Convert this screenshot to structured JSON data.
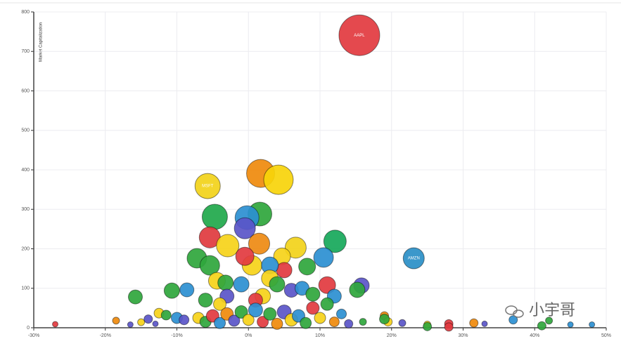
{
  "chart_data": {
    "type": "scatter",
    "y_label": "Market Capitalization",
    "xlim": [
      -30,
      50
    ],
    "ylim": [
      0,
      800
    ],
    "xticks": [
      {
        "value": -30,
        "label": "-30%"
      },
      {
        "value": -20,
        "label": "-20%"
      },
      {
        "value": -10,
        "label": "-10%"
      },
      {
        "value": 0,
        "label": "0%"
      },
      {
        "value": 10,
        "label": "10%"
      },
      {
        "value": 20,
        "label": "20%"
      },
      {
        "value": 30,
        "label": "30%"
      },
      {
        "value": 40,
        "label": "40%"
      },
      {
        "value": 50,
        "label": "50%"
      }
    ],
    "yticks": [
      0,
      100,
      200,
      300,
      400,
      500,
      600,
      700,
      800
    ],
    "grid": true,
    "watermark": "小宇哥",
    "x": [
      15.5,
      -5.7,
      23.1,
      1.7,
      4.2,
      -4.7,
      1.6,
      -0.2,
      -0.5,
      -5.4,
      12.1,
      1.5,
      -2.9,
      6.6,
      -7.2,
      10.5,
      0.5,
      -5.4,
      -0.5,
      4.7,
      8.2,
      5.0,
      3.0,
      -4.4,
      -3.2,
      11.0,
      15.8,
      15.2,
      -10.7,
      -8.6,
      -15.8,
      3,
      -1,
      2,
      4,
      6,
      7.5,
      1,
      -3,
      -6,
      9,
      -4,
      12,
      -27,
      -18.5,
      -16.5,
      -14,
      -15,
      -12.5,
      -11.5,
      -13,
      -10,
      -9,
      -7,
      -6,
      -5,
      -4,
      -3,
      -2,
      -1,
      0,
      1,
      2,
      3,
      4,
      5,
      6,
      7,
      8,
      9,
      10,
      11,
      12,
      13,
      14,
      16,
      19,
      19.5,
      19,
      21.5,
      25,
      25,
      28,
      28,
      31.5,
      33,
      37,
      41,
      42,
      45,
      48
    ],
    "values": [
      741,
      359,
      176,
      391,
      375,
      281,
      288,
      279,
      252,
      229,
      219,
      213,
      208,
      203,
      176,
      178,
      158,
      158,
      181,
      181,
      155,
      146,
      158,
      119,
      114,
      108,
      107,
      96,
      94,
      96,
      78,
      125,
      110,
      80,
      110,
      95,
      100,
      70,
      80,
      70,
      85,
      60,
      80,
      9,
      18,
      8,
      22,
      14,
      37,
      32,
      10,
      25,
      20,
      25,
      15,
      30,
      12,
      35,
      18,
      40,
      20,
      45,
      15,
      35,
      10,
      40,
      20,
      30,
      12,
      50,
      25,
      60,
      15,
      35,
      10,
      15,
      30,
      15,
      22,
      12,
      8,
      3,
      10,
      2,
      12,
      10,
      20,
      5,
      18,
      8,
      8
    ],
    "sizes": [
      29,
      18,
      15,
      20,
      21,
      18,
      17,
      17,
      15,
      15,
      16,
      15,
      16,
      15,
      14,
      14,
      14,
      14,
      13,
      12,
      12,
      11,
      12,
      12,
      11,
      12,
      11,
      11,
      11,
      10,
      10,
      12,
      11,
      11,
      11,
      10,
      10,
      10,
      10,
      10,
      10,
      9,
      10,
      4,
      5,
      4,
      6,
      5,
      7,
      7,
      4,
      8,
      7,
      8,
      8,
      9,
      8,
      9,
      8,
      9,
      8,
      10,
      8,
      9,
      8,
      10,
      9,
      9,
      8,
      9,
      8,
      9,
      7,
      7,
      6,
      5,
      6,
      6,
      7,
      5,
      5,
      6,
      6,
      6,
      6,
      4,
      6,
      6,
      5,
      4,
      4
    ],
    "colors": [
      "#e23a3f",
      "#f2d21a",
      "#2a8fc7",
      "#ef8a0c",
      "#f7d40a",
      "#1fa84b",
      "#2fa63c",
      "#2b8fd1",
      "#5a55c8",
      "#e03a3e",
      "#16a85a",
      "#ee8a12",
      "#f6d219",
      "#f2d21a",
      "#2fa63c",
      "#2b8fd1",
      "#f6d219",
      "#2fa63c",
      "#e23a3f",
      "#f6d219",
      "#2fa63c",
      "#e23a3f",
      "#2b8fd1",
      "#f6d219",
      "#2fa63c",
      "#e23a3f",
      "#5a55c8",
      "#2fa63c",
      "#2fa63c",
      "#2b8fd1",
      "#2fa63c",
      "#f6d219",
      "#2b8fd1",
      "#f6d219",
      "#2fa63c",
      "#5a55c8",
      "#2b8fd1",
      "#e23a3f",
      "#5a55c8",
      "#2fa63c",
      "#2fa63c",
      "#f6d219",
      "#2b8fd1",
      "#e23a3f",
      "#ef8a0c",
      "#5a55c8",
      "#5a55c8",
      "#f6d219",
      "#f6d219",
      "#2fa63c",
      "#5a55c8",
      "#2b8fd1",
      "#5a55c8",
      "#f6d219",
      "#2fa63c",
      "#e23a3f",
      "#2b8fd1",
      "#ef8a0c",
      "#5a55c8",
      "#2fa63c",
      "#f6d219",
      "#2b8fd1",
      "#e23a3f",
      "#2fa63c",
      "#ef8a0c",
      "#5a55c8",
      "#f6d219",
      "#2b8fd1",
      "#2fa63c",
      "#e23a3f",
      "#f6d219",
      "#2fa63c",
      "#ef8a0c",
      "#2b8fd1",
      "#5a55c8",
      "#2fa63c",
      "#ef8a0c",
      "#f6d219",
      "#2fa63c",
      "#5a55c8",
      "#f6d219",
      "#2fa63c",
      "#e23a3f",
      "#e23a3f",
      "#ef8a0c",
      "#5a55c8",
      "#2b8fd1",
      "#2fa63c",
      "#2fa63c",
      "#2b8fd1",
      "#2b8fd1"
    ],
    "labels": [
      "AAPL",
      "MSFT",
      "AMZN",
      null,
      null,
      null,
      null,
      null,
      null,
      null,
      null,
      null,
      null,
      null,
      null,
      null,
      null,
      null,
      null,
      null,
      null,
      null,
      null,
      null,
      null,
      null,
      null,
      null,
      null,
      null,
      null,
      null,
      null,
      null,
      null,
      null,
      null,
      null,
      null,
      null,
      null,
      null,
      null,
      null,
      null,
      null,
      null,
      null,
      null,
      null,
      null,
      null,
      null,
      null,
      null,
      null,
      null,
      null,
      null,
      null,
      null,
      null,
      null,
      null,
      null,
      null,
      null,
      null,
      null,
      null,
      null,
      null,
      null,
      null,
      null,
      null,
      null,
      null,
      null,
      null,
      null,
      null,
      null,
      null,
      null,
      null,
      null,
      null,
      null,
      null,
      null
    ]
  }
}
